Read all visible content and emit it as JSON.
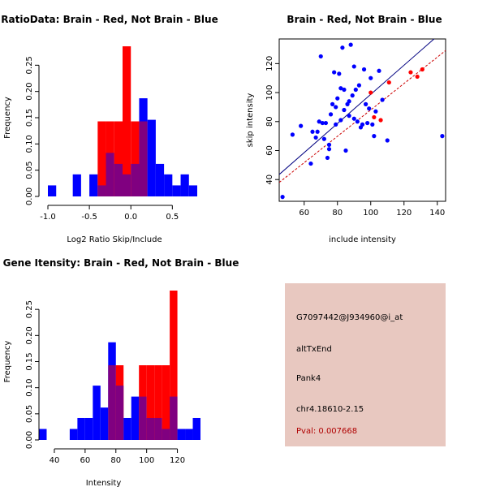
{
  "colors": {
    "red": "#ff0000",
    "blue": "#0000ff",
    "overlap": "#800080",
    "dark_red": "#cc0000",
    "navy": "#000080"
  },
  "chart_data": [
    {
      "type": "bar",
      "title": "RatioData: Brain - Red, Not Brain - Blue",
      "xlabel": "Log2 Ratio Skip/Include",
      "ylabel": "Frequency",
      "xlim": [
        -1.0,
        0.8
      ],
      "ylim": [
        0,
        0.3
      ],
      "xticks": [
        -1.0,
        -0.5,
        0.0,
        0.5
      ],
      "xtick_labels": [
        "-1.0",
        "-0.5",
        "0.0",
        "0.5"
      ],
      "yticks": [
        0,
        0.05,
        0.1,
        0.15,
        0.2,
        0.25
      ],
      "ytick_labels": [
        "0.00",
        "0.05",
        "0.10",
        "0.15",
        "0.20",
        "0.25"
      ],
      "bin_edges": [
        -1.0,
        -0.9,
        -0.8,
        -0.7,
        -0.6,
        -0.5,
        -0.4,
        -0.3,
        -0.2,
        -0.1,
        0.0,
        0.1,
        0.2,
        0.3,
        0.4,
        0.5,
        0.6,
        0.7,
        0.8
      ],
      "series": [
        {
          "name": "Not Brain",
          "color": "blue",
          "values": [
            0.021,
            0,
            0,
            0.042,
            0,
            0.042,
            0.021,
            0.083,
            0.062,
            0.042,
            0.062,
            0.187,
            0.146,
            0.062,
            0.042,
            0.021,
            0.042,
            0.021
          ]
        },
        {
          "name": "Brain",
          "color": "red",
          "values": [
            0,
            0,
            0,
            0,
            0,
            0,
            0.143,
            0.143,
            0.143,
            0.286,
            0.143,
            0.143,
            0,
            0,
            0,
            0,
            0,
            0
          ]
        }
      ]
    },
    {
      "type": "scatter",
      "title": "Brain - Red, Not Brain - Blue",
      "xlabel": "include intensity",
      "ylabel": "skip intensity",
      "xlim": [
        45,
        145
      ],
      "ylim": [
        25,
        137
      ],
      "xticks": [
        60,
        80,
        100,
        120,
        140
      ],
      "xtick_labels": [
        "60",
        "80",
        "100",
        "120",
        "140"
      ],
      "yticks": [
        40,
        60,
        80,
        100,
        120
      ],
      "ytick_labels": [
        "40",
        "60",
        "80",
        "100",
        "120"
      ],
      "series": [
        {
          "name": "Not Brain",
          "color": "blue",
          "x": [
            47,
            53,
            58,
            64,
            65,
            67,
            68,
            69,
            70,
            71,
            72,
            73,
            74,
            75,
            75,
            76,
            77,
            78,
            79,
            79,
            80,
            81,
            82,
            82,
            83,
            84,
            84,
            85,
            86,
            87,
            87,
            88,
            89,
            90,
            90,
            91,
            92,
            93,
            94,
            95,
            96,
            97,
            98,
            99,
            100,
            101,
            102,
            103,
            105,
            107,
            110,
            143
          ],
          "y": [
            28,
            71,
            77,
            51,
            73,
            69,
            73,
            80,
            125,
            79,
            68,
            79,
            55,
            61,
            64,
            85,
            92,
            114,
            78,
            90,
            96,
            113,
            81,
            103,
            131,
            88,
            102,
            60,
            92,
            94,
            84,
            133,
            98,
            82,
            118,
            102,
            80,
            105,
            76,
            78,
            116,
            92,
            79,
            89,
            110,
            78,
            70,
            87,
            115,
            95,
            67,
            70
          ]
        },
        {
          "name": "Brain",
          "color": "red",
          "x": [
            100,
            102,
            106,
            111,
            124,
            128,
            131
          ],
          "y": [
            100,
            83,
            81,
            107,
            114,
            111,
            116
          ]
        }
      ],
      "fit_lines": [
        {
          "name": "Not Brain fit",
          "color": "navy",
          "x": [
            45,
            145
          ],
          "y": [
            43.5,
            144
          ]
        },
        {
          "name": "Brain fit",
          "color": "dark_red",
          "x": [
            45,
            145
          ],
          "y": [
            38,
            129
          ]
        }
      ]
    },
    {
      "type": "bar",
      "title": "Gene Itensity: Brain - Red, Not Brain - Blue",
      "xlabel": "Intensity",
      "ylabel": "Frequency",
      "xlim": [
        30,
        135
      ],
      "ylim": [
        0,
        0.3
      ],
      "xticks": [
        40,
        60,
        80,
        100,
        120
      ],
      "xtick_labels": [
        "40",
        "60",
        "80",
        "100",
        "120"
      ],
      "yticks": [
        0,
        0.05,
        0.1,
        0.15,
        0.2,
        0.25
      ],
      "ytick_labels": [
        "0.00",
        "0.05",
        "0.10",
        "0.15",
        "0.20",
        "0.25"
      ],
      "bin_edges": [
        30,
        35,
        40,
        45,
        50,
        55,
        60,
        65,
        70,
        75,
        80,
        85,
        90,
        95,
        100,
        105,
        110,
        115,
        120,
        125,
        130,
        135
      ],
      "series": [
        {
          "name": "Not Brain",
          "color": "blue",
          "values": [
            0.021,
            0,
            0,
            0,
            0.021,
            0.042,
            0.042,
            0.104,
            0.062,
            0.187,
            0.104,
            0.042,
            0.083,
            0.083,
            0.042,
            0.042,
            0.021,
            0.083,
            0.021,
            0.021,
            0.042
          ]
        },
        {
          "name": "Brain",
          "color": "red",
          "values": [
            0,
            0,
            0,
            0,
            0,
            0,
            0,
            0,
            0,
            0.143,
            0.143,
            0,
            0,
            0.143,
            0.143,
            0.143,
            0.143,
            0.286,
            0,
            0,
            0
          ]
        }
      ]
    }
  ],
  "info": {
    "probe_id": "G7097442@J934960@i_at",
    "event_type": "altTxEnd",
    "gene": "Pank4",
    "location": "chr4.18610-2.15",
    "pval": "Pval: 0.007668"
  }
}
